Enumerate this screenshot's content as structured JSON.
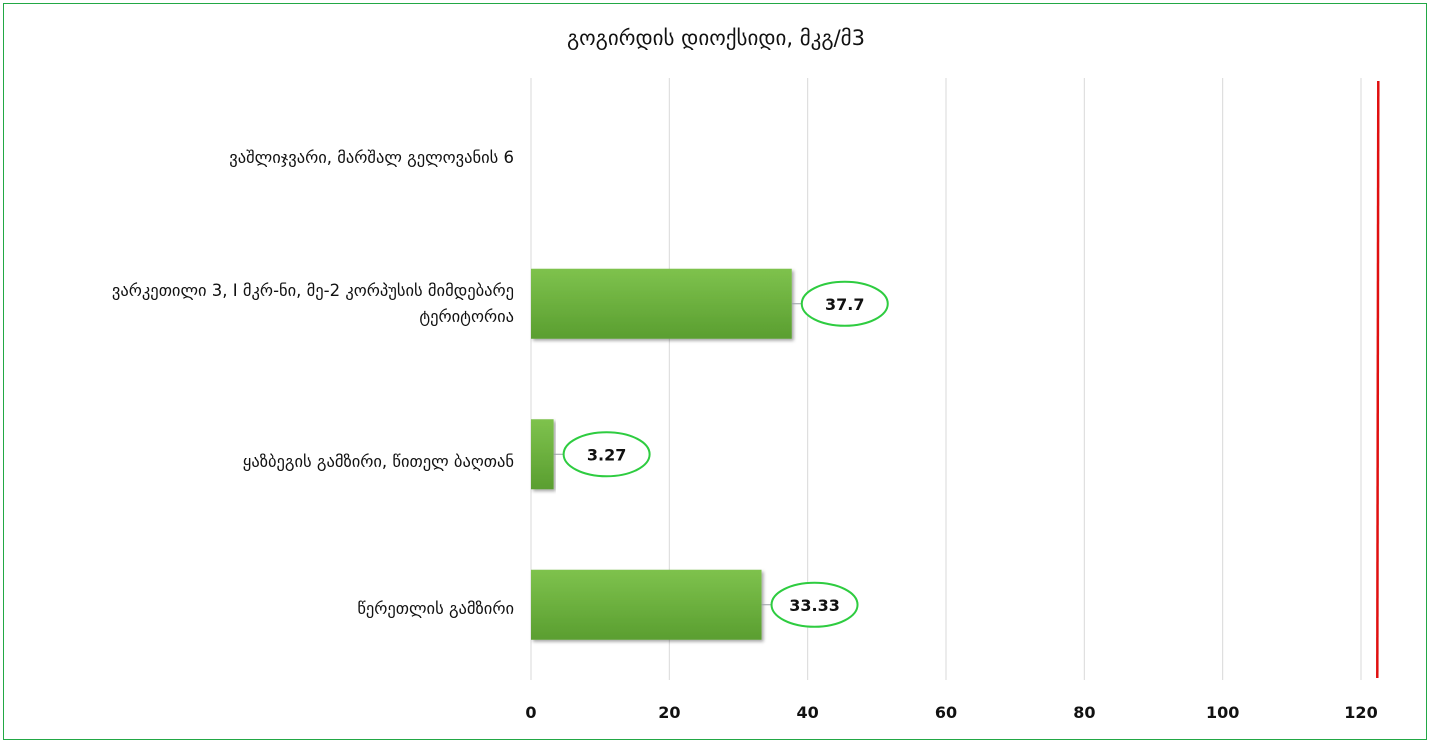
{
  "chart_data": {
    "type": "bar",
    "orientation": "horizontal",
    "title": "გოგირდის დიოქსიდი, მკგ/მ3",
    "categories": [
      "ვაშლიჯვარი, მარშალ გელოვანის 6",
      "ვარკეთილი 3, I მკრ-ნი, მე-2 კორპუსის მიმდებარე ტერიტორია",
      "ყაზბეგის გამზირი, წითელ ბაღთან",
      "წერეთლის გამზირი"
    ],
    "values": [
      null,
      37.7,
      3.27,
      33.33
    ],
    "data_labels": [
      "",
      "37.7",
      "3.27",
      "33.33"
    ],
    "xlim": [
      0,
      120
    ],
    "xticks": [
      "0",
      "20",
      "40",
      "60",
      "80",
      "100",
      "120"
    ],
    "reference_line": 122.5,
    "grid": true,
    "colors": {
      "bar": "#6db33f",
      "bar_dark": "#4d8f28",
      "label_border": "#2ecc40",
      "reference_line": "#e01010",
      "frame": "#22a845",
      "grid": "#d9d9d9"
    }
  }
}
